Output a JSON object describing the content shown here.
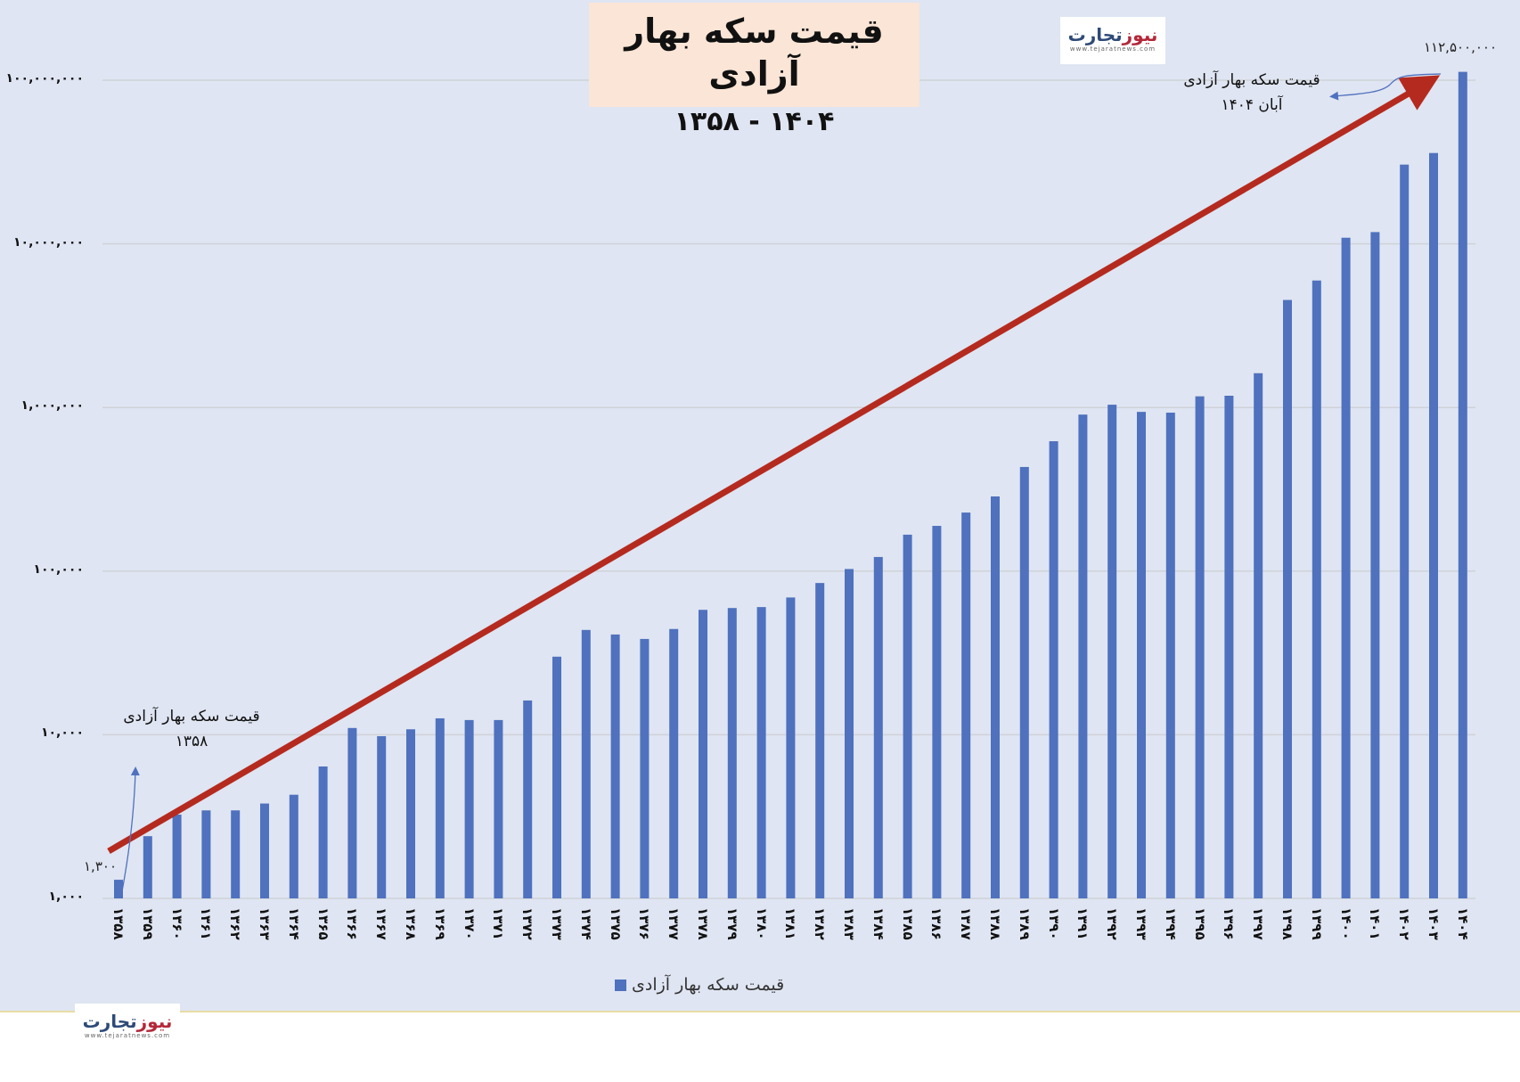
{
  "title": {
    "main": "قیمت سکه بهار آزادی",
    "sub": "۱۴۰۴ - ۱۳۵۸"
  },
  "logo": {
    "brand_part1": "تجارت",
    "brand_part2": "نیوز",
    "url": "www.tejaratnews.com"
  },
  "annotations": {
    "start": {
      "line1": "قیمت سکه بهار آزادی",
      "line2": "۱۳۵۸",
      "value": "۱,۳۰۰"
    },
    "end": {
      "line1": "قیمت سکه بهار آزادی",
      "line2": "آبان ۱۴۰۴",
      "value": "۱۱۲,۵۰۰,۰۰۰"
    }
  },
  "legend": {
    "label": "قیمت سکه بهار آزادی"
  },
  "colors": {
    "bar": "#4f71be",
    "trend_arrow": "#b52a1f",
    "annotation_arrow": "#4f71be",
    "plot_bg": "#dfe5f2",
    "title_bg": "#fae5d6"
  },
  "y_ticks": [
    "۱,۰۰۰",
    "۱۰,۰۰۰",
    "۱۰۰,۰۰۰",
    "۱,۰۰۰,۰۰۰",
    "۱۰,۰۰۰,۰۰۰",
    "۱۰۰,۰۰۰,۰۰۰"
  ],
  "x_ticks": [
    "۱۳۵۸",
    "۱۳۵۹",
    "۱۳۶۰",
    "۱۳۶۱",
    "۱۳۶۲",
    "۱۳۶۳",
    "۱۳۶۴",
    "۱۳۶۵",
    "۱۳۶۶",
    "۱۳۶۷",
    "۱۳۶۸",
    "۱۳۶۹",
    "۱۳۷۰",
    "۱۳۷۱",
    "۱۳۷۲",
    "۱۳۷۳",
    "۱۳۷۴",
    "۱۳۷۵",
    "۱۳۷۶",
    "۱۳۷۷",
    "۱۳۷۸",
    "۱۳۷۹",
    "۱۳۸۰",
    "۱۳۸۱",
    "۱۳۸۲",
    "۱۳۸۳",
    "۱۳۸۴",
    "۱۳۸۵",
    "۱۳۸۶",
    "۱۳۸۷",
    "۱۳۸۸",
    "۱۳۸۹",
    "۱۳۹۰",
    "۱۳۹۱",
    "۱۳۹۲",
    "۱۳۹۳",
    "۱۳۹۴",
    "۱۳۹۵",
    "۱۳۹۶",
    "۱۳۹۷",
    "۱۳۹۸",
    "۱۳۹۹",
    "۱۴۰۰",
    "۱۴۰۱",
    "۱۴۰۲",
    "۱۴۰۳",
    "۱۴۰۴"
  ],
  "chart_data": {
    "type": "bar",
    "title": "قیمت سکه بهار آزادی ۱۳۵۸ - ۱۴۰۴",
    "xlabel": "",
    "ylabel": "",
    "yscale": "log",
    "ylim": [
      1000,
      100000000
    ],
    "grid": true,
    "legend_position": "bottom",
    "categories": [
      1358,
      1359,
      1360,
      1361,
      1362,
      1363,
      1364,
      1365,
      1366,
      1367,
      1368,
      1369,
      1370,
      1371,
      1372,
      1373,
      1374,
      1375,
      1376,
      1377,
      1378,
      1379,
      1380,
      1381,
      1382,
      1383,
      1384,
      1385,
      1386,
      1387,
      1388,
      1389,
      1390,
      1391,
      1392,
      1393,
      1394,
      1395,
      1396,
      1397,
      1398,
      1399,
      1400,
      1401,
      1402,
      1403,
      1404
    ],
    "series": [
      {
        "name": "قیمت سکه بهار آزادی",
        "values": [
          1300,
          2400,
          3250,
          3450,
          3450,
          3800,
          4300,
          6400,
          11000,
          9800,
          10800,
          12600,
          12300,
          12300,
          16200,
          30000,
          43700,
          41000,
          38500,
          44300,
          58000,
          59500,
          60300,
          69000,
          84600,
          103000,
          122000,
          167000,
          189000,
          228000,
          286000,
          433000,
          622000,
          905000,
          1040000,
          940000,
          930000,
          1170000,
          1180000,
          1620000,
          4540000,
          5970000,
          10900000,
          11800000,
          30500000,
          35900000,
          112500000
        ]
      }
    ],
    "annotations": [
      {
        "text": "قیمت سکه بهار آزادی ۱۳۵۸",
        "value_label": "1,300",
        "x": 1358
      },
      {
        "text": "قیمت سکه بهار آزادی آبان ۱۴۰۴",
        "value_label": "112,500,000",
        "x": 1404
      }
    ],
    "trend_arrow": {
      "from": 1358,
      "to": 1404,
      "color": "#b52a1f"
    }
  }
}
